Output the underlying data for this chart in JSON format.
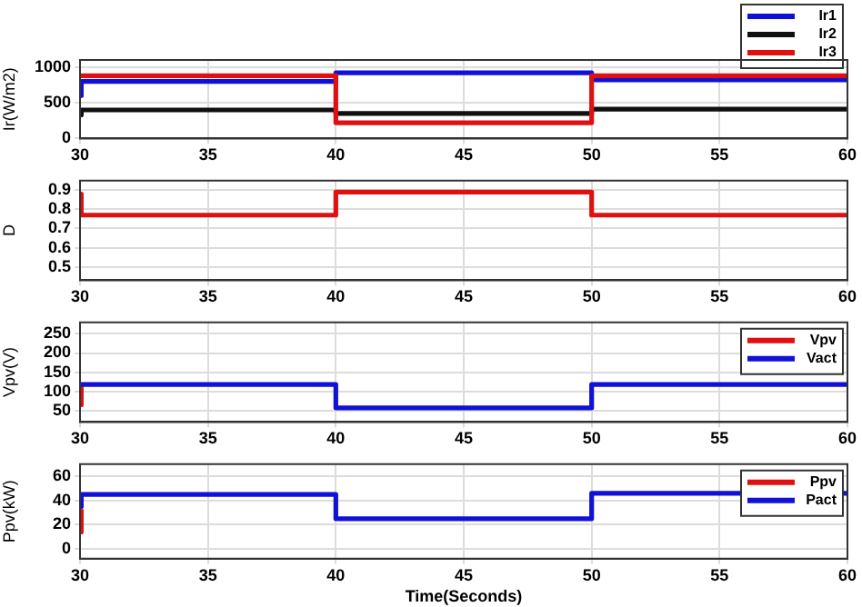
{
  "chart_data": [
    {
      "type": "line",
      "ylabel": "Ir(W/m2)",
      "xlim": [
        30,
        60
      ],
      "xticks": [
        30,
        35,
        40,
        45,
        50,
        55,
        60
      ],
      "ylim": [
        0,
        1100
      ],
      "yticks": [
        0,
        500,
        1000
      ],
      "grid": true,
      "legend": "top right",
      "marker": "none",
      "line_style": "solid",
      "x": [
        30,
        30.05,
        40,
        40,
        50,
        50,
        60
      ],
      "series": [
        {
          "name": "Ir1",
          "color": "#1010d8",
          "values": [
            600,
            800,
            800,
            920,
            920,
            820,
            820
          ]
        },
        {
          "name": "Ir2",
          "color": "#101010",
          "values": [
            330,
            400,
            400,
            350,
            350,
            410,
            410
          ]
        },
        {
          "name": "Ir3",
          "color": "#e01010",
          "values": [
            880,
            880,
            880,
            220,
            220,
            880,
            880
          ]
        }
      ]
    },
    {
      "type": "line",
      "ylabel": "D",
      "xlim": [
        30,
        60
      ],
      "xticks": [
        30,
        35,
        40,
        45,
        50,
        55,
        60
      ],
      "ylim": [
        0.43,
        0.95
      ],
      "yticks": [
        0.5,
        0.6,
        0.7,
        0.8,
        0.9
      ],
      "grid": true,
      "marker": "none",
      "line_style": "solid",
      "x": [
        30,
        30.05,
        40,
        40,
        50,
        50,
        60
      ],
      "series": [
        {
          "color": "#e01010",
          "values": [
            0.88,
            0.77,
            0.77,
            0.89,
            0.89,
            0.77,
            0.77
          ]
        }
      ]
    },
    {
      "type": "line",
      "ylabel": "Vpv(V)",
      "xlim": [
        30,
        60
      ],
      "xticks": [
        30,
        35,
        40,
        45,
        50,
        55,
        60
      ],
      "ylim": [
        20,
        280
      ],
      "yticks": [
        50,
        100,
        150,
        200,
        250
      ],
      "grid": true,
      "legend": "top right",
      "marker": "none",
      "line_style": "solid",
      "series": [
        {
          "name": "Vpv",
          "color": "#e01010",
          "x": [
            30,
            30.05
          ],
          "values": [
            65,
            118
          ]
        },
        {
          "name": "Vact",
          "color": "#1010d8",
          "x": [
            30,
            40,
            40,
            50,
            50,
            60
          ],
          "values": [
            118,
            118,
            57,
            57,
            118,
            118
          ]
        }
      ]
    },
    {
      "type": "line",
      "xlabel": "Time(Seconds)",
      "ylabel": "Ppv(kW)",
      "xlim": [
        30,
        60
      ],
      "xticks": [
        30,
        35,
        40,
        45,
        50,
        55,
        60
      ],
      "ylim": [
        -8,
        70
      ],
      "yticks": [
        0,
        20,
        40,
        60
      ],
      "grid": true,
      "legend": "top right",
      "marker": "none",
      "line_style": "solid",
      "series": [
        {
          "name": "Ppv",
          "color": "#e01010",
          "x": [
            30,
            30.05
          ],
          "values": [
            14,
            33
          ]
        },
        {
          "name": "Pact",
          "color": "#1010d8",
          "x": [
            30,
            30.05,
            40,
            40,
            50,
            50,
            60
          ],
          "values": [
            35,
            45,
            45,
            25,
            25,
            46,
            46
          ]
        }
      ]
    }
  ]
}
